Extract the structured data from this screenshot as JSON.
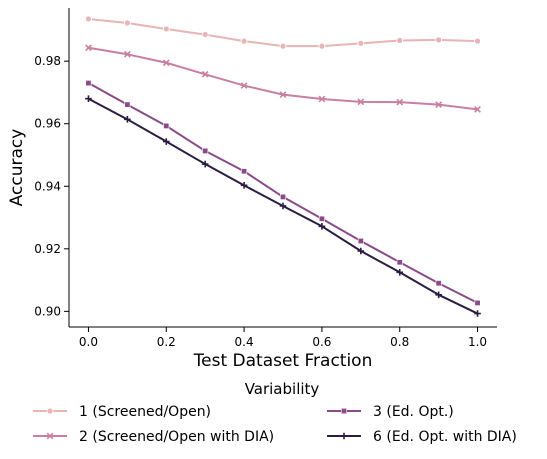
{
  "chart_data": {
    "type": "line",
    "xlabel": "Test Dataset Fraction",
    "ylabel": "Accuracy",
    "x": [
      0.0,
      0.1,
      0.2,
      0.3,
      0.4,
      0.5,
      0.6,
      0.7,
      0.8,
      0.9,
      1.0
    ],
    "xlim": [
      -0.05,
      1.05
    ],
    "ylim": [
      0.895,
      0.997
    ],
    "x_ticks": [
      0.0,
      0.2,
      0.4,
      0.6,
      0.8,
      1.0
    ],
    "x_tick_labels": [
      "0.0",
      "0.2",
      "0.4",
      "0.6",
      "0.8",
      "1.0"
    ],
    "y_ticks": [
      0.9,
      0.92,
      0.94,
      0.96,
      0.98
    ],
    "y_tick_labels": [
      "0.90",
      "0.92",
      "0.94",
      "0.96",
      "0.98"
    ],
    "grid": false,
    "legend": {
      "title": "Variability",
      "placement": "bottom"
    },
    "series": [
      {
        "name": "1 (Screened/Open)",
        "color": "#e8b4b4",
        "marker": "circle",
        "values": [
          0.9935,
          0.9922,
          0.9903,
          0.9885,
          0.9864,
          0.9848,
          0.9848,
          0.9857,
          0.9866,
          0.9868,
          0.9864
        ]
      },
      {
        "name": "2 (Screened/Open with DIA)",
        "color": "#c97fa1",
        "marker": "x",
        "values": [
          0.9843,
          0.9822,
          0.9795,
          0.9758,
          0.9722,
          0.9693,
          0.9679,
          0.967,
          0.9669,
          0.9661,
          0.9646
        ]
      },
      {
        "name": "3 (Ed. Opt.)",
        "color": "#8a4a87",
        "marker": "square",
        "values": [
          0.973,
          0.9661,
          0.9593,
          0.9513,
          0.9448,
          0.9366,
          0.9296,
          0.9225,
          0.9157,
          0.909,
          0.9027
        ]
      },
      {
        "name": "6 (Ed. Opt. with DIA)",
        "color": "#2b1c42",
        "marker": "plus",
        "values": [
          0.968,
          0.9614,
          0.9543,
          0.9471,
          0.9403,
          0.9337,
          0.9272,
          0.9193,
          0.9125,
          0.9053,
          0.8993
        ]
      }
    ]
  }
}
